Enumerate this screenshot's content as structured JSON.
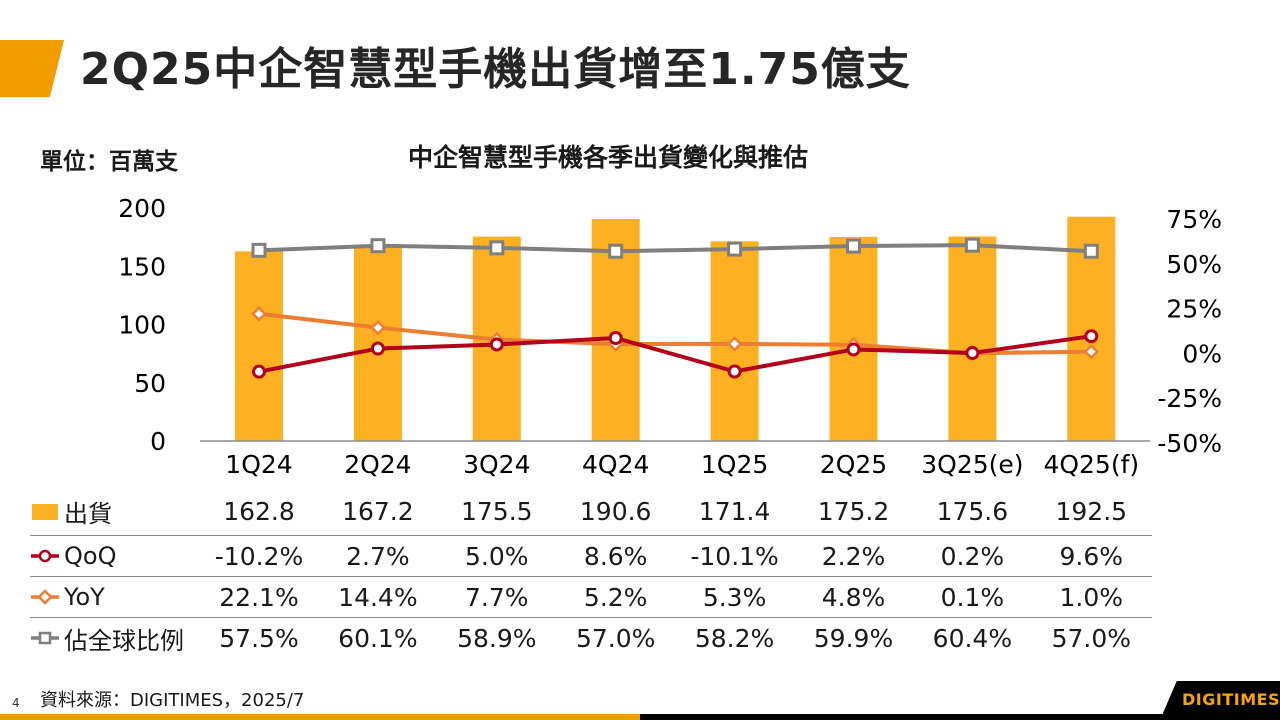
{
  "slide": {
    "title": "2Q25中企智慧型手機出貨增至1.75億支",
    "unit_label": "單位：百萬支",
    "page_number": "4",
    "source": "資料來源：DIGITIMES，2025/7",
    "logo": "DIGITIMES"
  },
  "colors": {
    "accent": "#f39c00",
    "bar": "#fdb022",
    "qoq": "#b3001b",
    "yoy": "#ee7d31",
    "share": "#7f7f7f"
  },
  "chart_data": {
    "type": "bar",
    "title": "中企智慧型手機各季出貨變化與推估",
    "xlabel": "",
    "ylabel": "單位：百萬支",
    "categories": [
      "1Q24",
      "2Q24",
      "3Q24",
      "4Q24",
      "1Q25",
      "2Q25",
      "3Q25(e)",
      "4Q25(f)"
    ],
    "left_axis": {
      "range": [
        0,
        200
      ],
      "ticks": [
        "0",
        "50",
        "100",
        "150",
        "200"
      ],
      "tick_values": [
        0,
        50,
        100,
        150,
        200
      ]
    },
    "right_axis": {
      "range": [
        -50,
        75
      ],
      "ticks": [
        "-50%",
        "-25%",
        "0%",
        "25%",
        "50%",
        "75%"
      ],
      "tick_values": [
        -50,
        -25,
        0,
        25,
        50,
        75
      ]
    },
    "grid": false,
    "legend_position": "table-left",
    "series": [
      {
        "name": "出貨",
        "kind": "bar",
        "axis": "left",
        "marker": "square-fill",
        "values": [
          162.8,
          167.2,
          175.5,
          190.6,
          171.4,
          175.2,
          175.6,
          192.5
        ],
        "labels": [
          "162.8",
          "167.2",
          "175.5",
          "190.6",
          "171.4",
          "175.2",
          "175.6",
          "192.5"
        ]
      },
      {
        "name": "QoQ",
        "kind": "line",
        "axis": "right",
        "marker": "circle",
        "values": [
          -10.2,
          2.7,
          5.0,
          8.6,
          -10.1,
          2.2,
          0.2,
          9.6
        ],
        "labels": [
          "-10.2%",
          "2.7%",
          "5.0%",
          "8.6%",
          "-10.1%",
          "2.2%",
          "0.2%",
          "9.6%"
        ]
      },
      {
        "name": "YoY",
        "kind": "line",
        "axis": "right",
        "marker": "diamond",
        "values": [
          22.1,
          14.4,
          7.7,
          5.2,
          5.3,
          4.8,
          0.1,
          1.0
        ],
        "labels": [
          "22.1%",
          "14.4%",
          "7.7%",
          "5.2%",
          "5.3%",
          "4.8%",
          "0.1%",
          "1.0%"
        ]
      },
      {
        "name": "佔全球比例",
        "kind": "line",
        "axis": "right",
        "marker": "square",
        "values": [
          57.5,
          60.1,
          58.9,
          57.0,
          58.2,
          59.9,
          60.4,
          57.0
        ],
        "labels": [
          "57.5%",
          "60.1%",
          "58.9%",
          "57.0%",
          "58.2%",
          "59.9%",
          "60.4%",
          "57.0%"
        ]
      }
    ]
  }
}
